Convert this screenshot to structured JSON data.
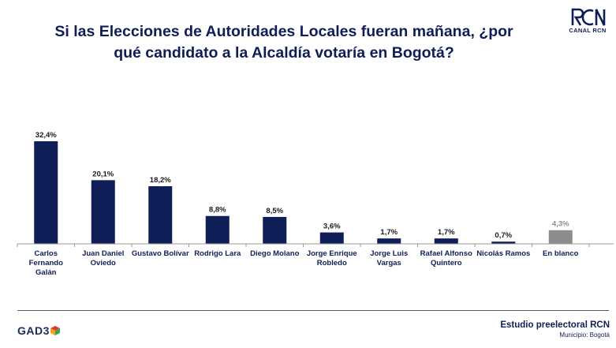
{
  "header": {
    "title_line1": "Si las Elecciones de Autoridades Locales fueran mañana, ¿por",
    "title_line2": "qué candidato a la Alcaldía votaría en Bogotá?",
    "brand_logo": "CANAL RCN"
  },
  "footer": {
    "study": "Estudio preelectoral RCN",
    "municipality": "Municipio: Bogotá",
    "pollster_logo": "GAD3"
  },
  "colors": {
    "bar": "#0f1e57",
    "bar_blank": "#8c8c8c",
    "label_blank": "#8c8c8c",
    "text": "#0f1e57"
  },
  "chart_data": {
    "type": "bar",
    "title": "Si las Elecciones de Autoridades Locales fueran mañana, ¿por qué candidato a la Alcaldía votaría en Bogotá?",
    "categories": [
      [
        "Carlos",
        "Fernando",
        "Galán"
      ],
      [
        "Juan Daniel",
        "Oviedo"
      ],
      [
        "Gustavo Bolívar"
      ],
      [
        "Rodrigo Lara"
      ],
      [
        "Diego Molano"
      ],
      [
        "Jorge Enrique",
        "Robledo"
      ],
      [
        "Jorge Luis",
        "Vargas"
      ],
      [
        "Rafael Alfonso",
        "Quintero"
      ],
      [
        "Nicolás Ramos"
      ],
      [
        "En blanco"
      ]
    ],
    "values": [
      32.4,
      20.1,
      18.2,
      8.8,
      8.5,
      3.6,
      1.7,
      1.7,
      0.7,
      4.3
    ],
    "value_labels": [
      "32,4%",
      "20,1%",
      "18,2%",
      "8,8%",
      "8,5%",
      "3,6%",
      "1,7%",
      "1,7%",
      "0,7%",
      "4,3%"
    ],
    "unit": "%",
    "xlabel": "",
    "ylabel": "",
    "ylim": [
      0,
      32.4
    ],
    "grid": false,
    "legend": "none"
  }
}
